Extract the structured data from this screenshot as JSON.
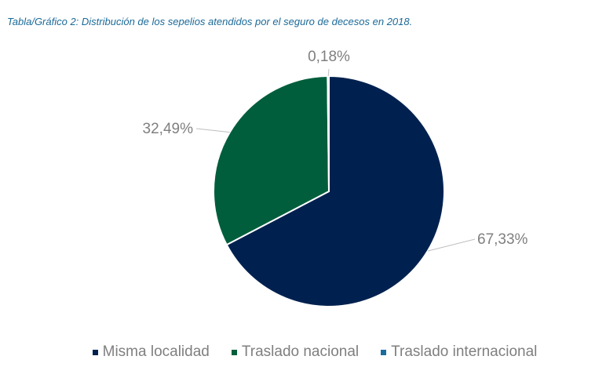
{
  "title": "Tabla/Gráfico 2: Distribución de los sepelios atendidos por el seguro de decesos en 2018.",
  "chart_data": {
    "type": "pie",
    "title": "Tabla/Gráfico 2: Distribución de los sepelios atendidos por el seguro de decesos en 2018.",
    "categories": [
      "Misma localidad",
      "Traslado nacional",
      "Traslado internacional"
    ],
    "values": [
      67.33,
      32.49,
      0.18
    ],
    "data_labels": [
      "67,33%",
      "32,49%",
      "0,18%"
    ],
    "colors": [
      "#00214f",
      "#005e3c",
      "#1b6c9c"
    ],
    "start_angle": "12 o'clock",
    "direction": "clockwise",
    "legend_position": "bottom"
  }
}
